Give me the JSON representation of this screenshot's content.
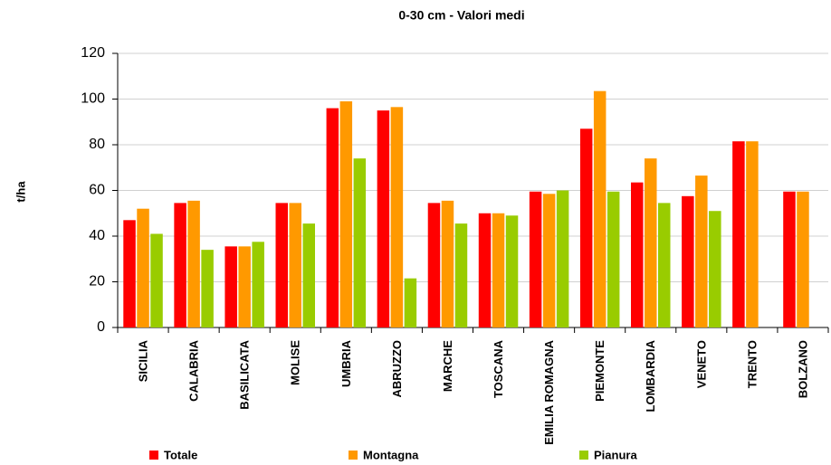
{
  "chart_data": {
    "type": "bar",
    "title": "0-30 cm - Valori medi",
    "y_label": "t/ha",
    "categories": [
      "SICILIA",
      "CALABRIA",
      "BASILICATA",
      "MOLISE",
      "UMBRIA",
      "ABRUZZO",
      "MARCHE",
      "TOSCANA",
      "EMILIA ROMAGNA",
      "PIEMONTE",
      "LOMBARDIA",
      "VENETO",
      "TRENTO",
      "BOLZANO"
    ],
    "series": [
      {
        "name": "Totale",
        "color": "#ff0000",
        "values": [
          47,
          54.5,
          35.5,
          54.5,
          96,
          95,
          54.5,
          50,
          59.5,
          87,
          63.5,
          57.5,
          81.5,
          59.5
        ]
      },
      {
        "name": "Montagna",
        "color": "#ff9900",
        "values": [
          52,
          55.5,
          35.5,
          54.5,
          99,
          96.5,
          55.5,
          50,
          58.5,
          103.5,
          74,
          66.5,
          81.5,
          59.5
        ]
      },
      {
        "name": "Pianura",
        "color": "#99cc00",
        "values": [
          41,
          34,
          37.5,
          45.5,
          74,
          21.5,
          45.5,
          49,
          60,
          59.5,
          54.5,
          51,
          null,
          null
        ]
      }
    ],
    "ylim": [
      0,
      120
    ],
    "yticks": [
      0,
      20,
      40,
      60,
      80,
      100,
      120
    ],
    "grid": true,
    "legend": "bottom"
  }
}
